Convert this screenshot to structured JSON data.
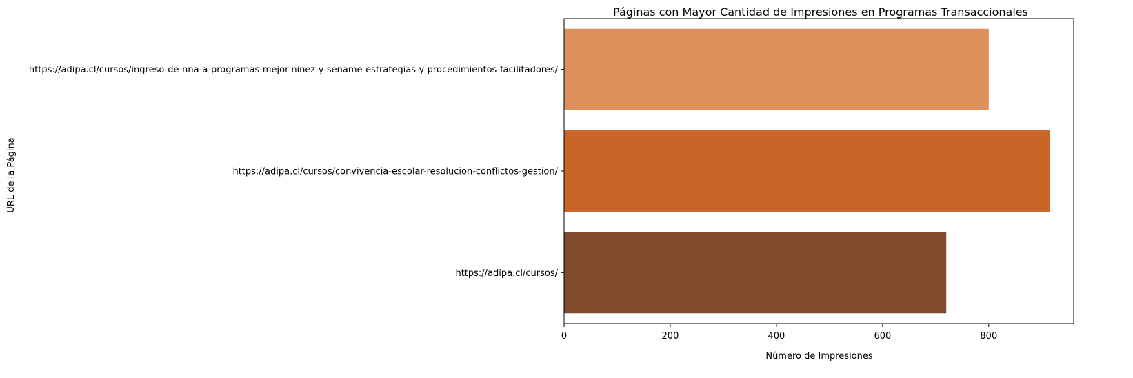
{
  "chart_data": {
    "type": "bar",
    "orientation": "horizontal",
    "title": "Páginas con Mayor Cantidad de Impresiones en Programas Transaccionales",
    "xlabel": "Número de Impresiones",
    "ylabel": "URL de la Página",
    "categories": [
      "https://adipa.cl/cursos/ingreso-de-nna-a-programas-mejor-ninez-y-sename-estrategias-y-procedimientos-facilitadores/",
      "https://adipa.cl/cursos/convivencia-escolar-resolucion-conflictos-gestion/",
      "https://adipa.cl/cursos/"
    ],
    "values": [
      800,
      915,
      720
    ],
    "colors": [
      "#dd905c",
      "#cb6427",
      "#804c2d"
    ],
    "xlim": [
      0,
      960
    ],
    "xticks": [
      0,
      200,
      400,
      600,
      800
    ],
    "grid": false,
    "legend": "none"
  }
}
